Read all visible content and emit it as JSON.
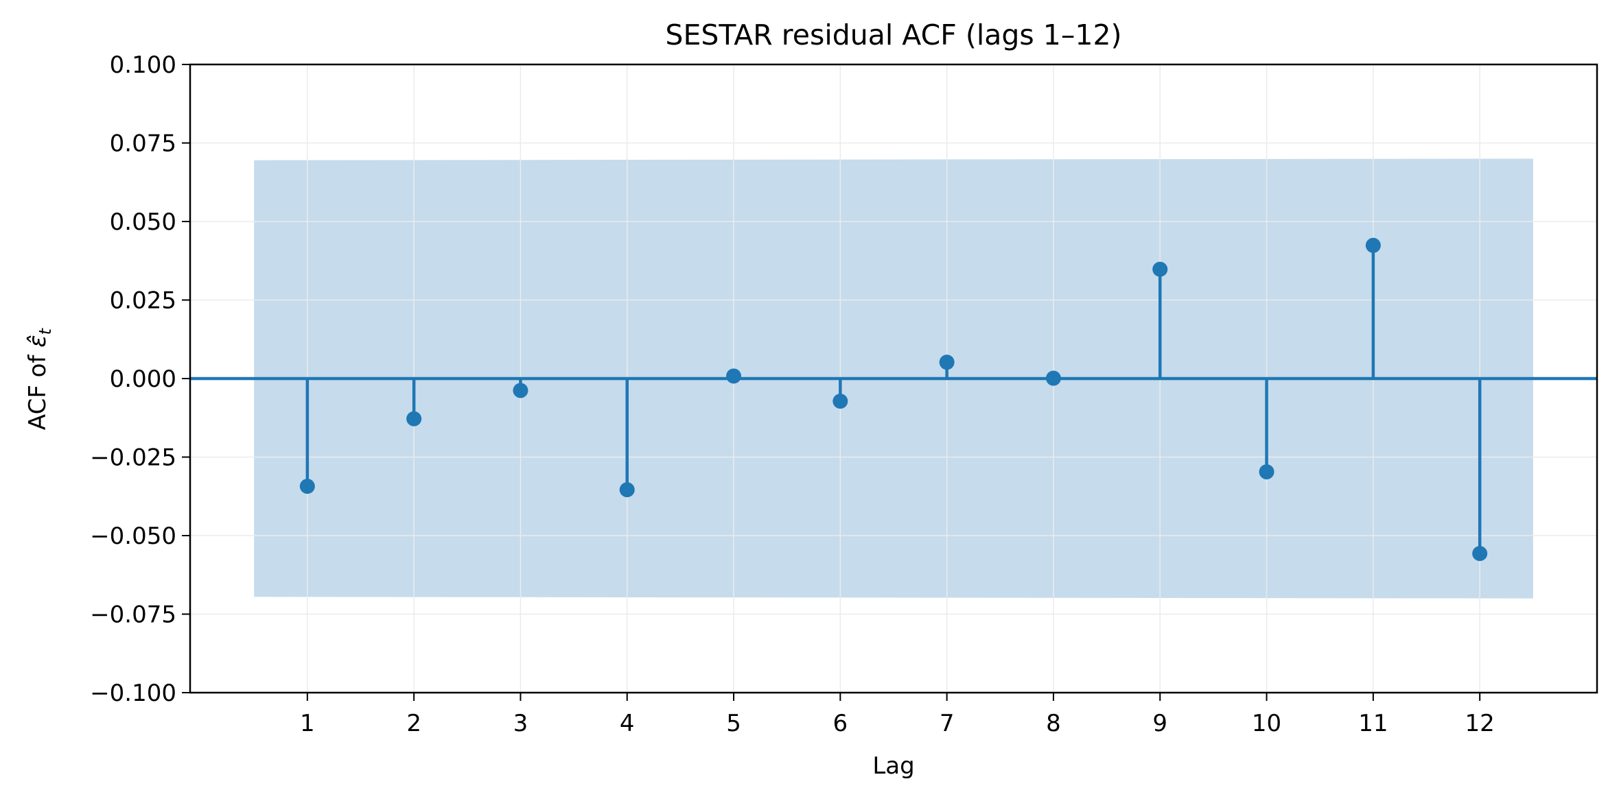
{
  "chart_data": {
    "type": "stem",
    "title": "SESTAR residual ACF (lags 1–12)",
    "xlabel": "Lag",
    "ylabel_prefix": "ACF of ",
    "ylabel_symbol": "ε̂",
    "ylabel_subscript": "t",
    "x": [
      1,
      2,
      3,
      4,
      5,
      6,
      7,
      8,
      9,
      10,
      11,
      12
    ],
    "x_tick_labels": [
      "1",
      "2",
      "3",
      "4",
      "5",
      "6",
      "7",
      "8",
      "9",
      "10",
      "11",
      "12"
    ],
    "values": [
      -0.0343,
      -0.0128,
      -0.0038,
      -0.0354,
      0.0008,
      -0.0072,
      0.0052,
      0.0001,
      0.0348,
      -0.0297,
      0.0424,
      -0.0557
    ],
    "confidence_band": {
      "x_start": 0.5,
      "x_end": 12.5,
      "upper_start": 0.0695,
      "upper_end": 0.07,
      "lower_start": -0.0695,
      "lower_end": -0.07
    },
    "xlim": [
      -0.1,
      13.1
    ],
    "ylim": [
      -0.1,
      0.1
    ],
    "y_ticks": [
      0.1,
      0.075,
      0.05,
      0.025,
      0.0,
      -0.025,
      -0.05,
      -0.075,
      -0.1
    ],
    "y_tick_labels": [
      "0.100",
      "0.075",
      "0.050",
      "0.025",
      "0.000",
      "−0.025",
      "−0.050",
      "−0.075",
      "−0.100"
    ],
    "grid": true,
    "legend": "none",
    "colors": {
      "stem": "#1f77b4",
      "band": "#c6dbec",
      "grid": "#ebebeb",
      "axes": "#000000"
    }
  }
}
